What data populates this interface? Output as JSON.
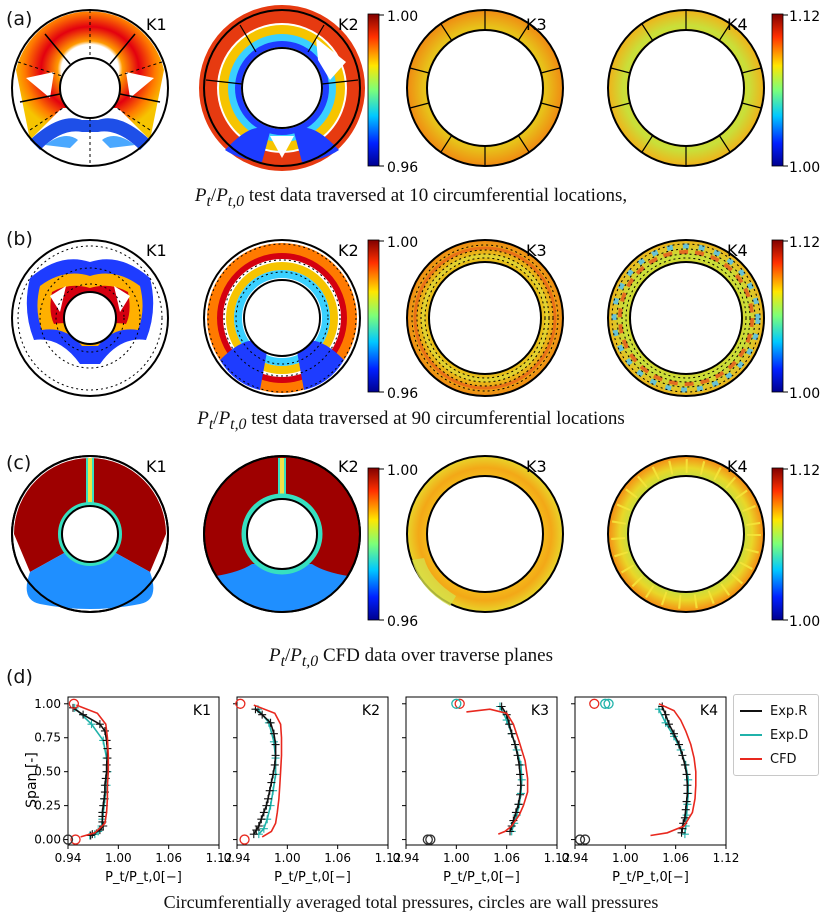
{
  "panels": {
    "a": {
      "label": "(a)",
      "caption_prefix": "P",
      "caption_sub_t": "t",
      "caption_sep": "/",
      "caption_sub_t0": "t,0",
      "caption_rest": " test data traversed at 10 circumferential locations,"
    },
    "b": {
      "label": "(b)",
      "caption_rest": " test data traversed at 90 circumferential locations"
    },
    "c": {
      "label": "(c)",
      "caption_rest": " CFD data over traverse planes"
    },
    "d": {
      "label": "(d)",
      "caption": "Circumferentially averaged total pressures, circles are wall pressures"
    }
  },
  "planes": [
    "K1",
    "K2",
    "K3",
    "K4"
  ],
  "colorbars": {
    "low": {
      "max": "1.00",
      "min": "0.96"
    },
    "high": {
      "max": "1.12",
      "min": "1.00"
    }
  },
  "colors": {
    "exp_r": "#111111",
    "exp_d": "#20b2aa",
    "cfd": "#e8281e",
    "dark_red": "#9e0000",
    "cfd_blue": "#1f8fff"
  },
  "chart_data": {
    "type": "line",
    "ylabel": "Span [-]",
    "xlabel": "P_t/P_t,0[−]",
    "xlim": [
      0.94,
      1.12
    ],
    "ylim": [
      -0.04,
      1.05
    ],
    "xticks": [
      "0.94",
      "1.00",
      "1.06",
      "1.12"
    ],
    "yticks": [
      "0.00",
      "0.25",
      "0.50",
      "0.75",
      "1.00"
    ],
    "legend": [
      "Exp.R",
      "Exp.D",
      "CFD"
    ],
    "legend_position": "right",
    "subplots": [
      {
        "name": "K1",
        "exp_r": {
          "x": [
            0.946,
            0.958,
            0.978,
            0.984,
            0.986,
            0.987,
            0.987,
            0.986,
            0.986,
            0.985,
            0.984,
            0.984,
            0.983,
            0.982,
            0.981,
            0.981,
            0.981,
            0.982,
            0.978,
            0.969,
            0.967
          ],
          "y": [
            0.97,
            0.92,
            0.85,
            0.8,
            0.73,
            0.67,
            0.6,
            0.55,
            0.5,
            0.45,
            0.4,
            0.35,
            0.3,
            0.25,
            0.2,
            0.17,
            0.13,
            0.1,
            0.07,
            0.04,
            0.03
          ]
        },
        "exp_d": {
          "x": [
            0.948,
            0.968,
            0.982,
            0.986,
            0.987,
            0.986,
            0.984,
            0.983,
            0.982,
            0.981,
            0.98,
            0.976,
            0.972,
            0.966
          ],
          "y": [
            0.97,
            0.85,
            0.73,
            0.6,
            0.5,
            0.4,
            0.3,
            0.25,
            0.2,
            0.15,
            0.1,
            0.06,
            0.04,
            0.03
          ]
        },
        "cfd": {
          "x": [
            0.95,
            0.975,
            0.985,
            0.987,
            0.988,
            0.988,
            0.987,
            0.987,
            0.986,
            0.984,
            0.972,
            0.955
          ],
          "y": [
            0.99,
            0.93,
            0.85,
            0.75,
            0.62,
            0.5,
            0.4,
            0.3,
            0.2,
            0.12,
            0.05,
            0.02
          ]
        },
        "wall_red": [
          [
            0.947,
            1.0
          ],
          [
            0.949,
            0.0
          ]
        ],
        "wall_cyan": [
          [
            0.94,
            0.0
          ]
        ]
      },
      {
        "name": "K2",
        "exp_r": {
          "x": [
            0.962,
            0.97,
            0.98,
            0.984,
            0.986,
            0.986,
            0.985,
            0.983,
            0.981,
            0.979,
            0.977,
            0.975,
            0.972,
            0.969,
            0.966,
            0.963,
            0.96
          ],
          "y": [
            0.96,
            0.92,
            0.86,
            0.78,
            0.7,
            0.62,
            0.55,
            0.48,
            0.42,
            0.36,
            0.3,
            0.25,
            0.2,
            0.15,
            0.1,
            0.07,
            0.04
          ]
        },
        "exp_d": {
          "x": [
            0.965,
            0.978,
            0.984,
            0.986,
            0.986,
            0.983,
            0.98,
            0.976,
            0.972,
            0.966
          ],
          "y": [
            0.96,
            0.86,
            0.72,
            0.6,
            0.48,
            0.36,
            0.25,
            0.15,
            0.08,
            0.04
          ]
        },
        "cfd": {
          "x": [
            0.96,
            0.985,
            0.992,
            0.993,
            0.993,
            0.992,
            0.991,
            0.99,
            0.988,
            0.986,
            0.981,
            0.97
          ],
          "y": [
            0.99,
            0.93,
            0.85,
            0.75,
            0.62,
            0.5,
            0.4,
            0.3,
            0.2,
            0.12,
            0.06,
            0.02
          ]
        },
        "wall_red": [
          [
            0.944,
            1.0
          ],
          [
            0.949,
            0.0
          ]
        ],
        "wall_cyan": []
      },
      {
        "name": "K3",
        "exp_r": {
          "x": [
            1.054,
            1.06,
            1.063,
            1.066,
            1.07,
            1.073,
            1.075,
            1.076,
            1.077,
            1.076,
            1.074,
            1.071,
            1.068,
            1.066,
            1.064
          ],
          "y": [
            0.98,
            0.92,
            0.85,
            0.78,
            0.7,
            0.62,
            0.55,
            0.48,
            0.4,
            0.33,
            0.26,
            0.2,
            0.14,
            0.1,
            0.06
          ]
        },
        "exp_d": {
          "x": [
            1.052,
            1.06,
            1.066,
            1.072,
            1.077,
            1.078,
            1.077,
            1.075,
            1.072,
            1.069,
            1.066
          ],
          "y": [
            0.98,
            0.88,
            0.78,
            0.66,
            0.55,
            0.44,
            0.34,
            0.26,
            0.18,
            0.12,
            0.06
          ]
        },
        "cfd": {
          "x": [
            1.012,
            1.04,
            1.06,
            1.068,
            1.075,
            1.082,
            1.085,
            1.085,
            1.08,
            1.075,
            1.066,
            1.058,
            1.05
          ],
          "y": [
            0.94,
            0.96,
            0.93,
            0.85,
            0.72,
            0.58,
            0.45,
            0.35,
            0.25,
            0.18,
            0.1,
            0.06,
            0.04
          ]
        },
        "wall_red": [
          [
            1.004,
            1.0
          ]
        ],
        "wall_cyan": [
          [
            1.0,
            1.0
          ],
          [
            0.969,
            0.0
          ],
          [
            0.966,
            0.0
          ]
        ]
      },
      {
        "name": "K4",
        "exp_r": {
          "x": [
            1.044,
            1.048,
            1.052,
            1.058,
            1.064,
            1.068,
            1.071,
            1.073,
            1.074,
            1.074,
            1.073,
            1.072,
            1.071,
            1.069,
            1.068,
            1.067
          ],
          "y": [
            0.98,
            0.92,
            0.85,
            0.78,
            0.7,
            0.62,
            0.55,
            0.48,
            0.4,
            0.34,
            0.28,
            0.22,
            0.16,
            0.12,
            0.08,
            0.05
          ]
        },
        "exp_d": {
          "x": [
            1.04,
            1.048,
            1.058,
            1.066,
            1.072,
            1.075,
            1.075,
            1.074,
            1.073,
            1.072,
            1.071
          ],
          "y": [
            0.96,
            0.86,
            0.76,
            0.66,
            0.55,
            0.44,
            0.34,
            0.26,
            0.18,
            0.1,
            0.04
          ]
        },
        "cfd": {
          "x": [
            1.04,
            1.058,
            1.066,
            1.072,
            1.078,
            1.082,
            1.084,
            1.084,
            1.083,
            1.08,
            1.07,
            1.05,
            1.03
          ],
          "y": [
            1.0,
            0.95,
            0.88,
            0.8,
            0.7,
            0.6,
            0.5,
            0.4,
            0.3,
            0.2,
            0.1,
            0.05,
            0.03
          ]
        },
        "wall_red": [
          [
            0.963,
            1.0
          ]
        ],
        "wall_cyan": [
          [
            0.976,
            1.0
          ],
          [
            0.98,
            1.0
          ],
          [
            0.946,
            0.0
          ],
          [
            0.952,
            0.0
          ]
        ]
      }
    ]
  }
}
